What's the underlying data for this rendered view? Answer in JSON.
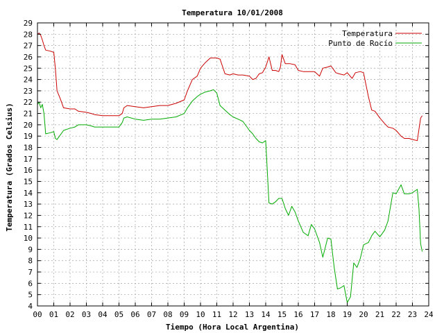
{
  "chart_data": {
    "type": "line",
    "title": "Temperatura 10/01/2008",
    "xlabel": "Tiempo (Hora Local Argentina)",
    "ylabel": "Temperatura (Grados Celsius)",
    "xlim": [
      0,
      24
    ],
    "ylim": [
      4,
      29
    ],
    "x_ticks": [
      "00",
      "01",
      "02",
      "03",
      "04",
      "05",
      "06",
      "07",
      "08",
      "09",
      "10",
      "11",
      "12",
      "13",
      "14",
      "15",
      "16",
      "17",
      "18",
      "19",
      "20",
      "21",
      "22",
      "23",
      "24"
    ],
    "y_ticks": [
      "4",
      "5",
      "6",
      "7",
      "8",
      "9",
      "10",
      "11",
      "12",
      "13",
      "14",
      "15",
      "16",
      "17",
      "18",
      "19",
      "20",
      "21",
      "22",
      "23",
      "24",
      "25",
      "26",
      "27",
      "28",
      "29"
    ],
    "grid": true,
    "legend_position": "top-right",
    "series": [
      {
        "name": "Temperatura",
        "color": "#cc0000",
        "x": [
          0.0,
          0.1,
          0.2,
          0.3,
          0.4,
          0.5,
          0.8,
          1.0,
          1.1,
          1.2,
          1.4,
          1.6,
          2.0,
          2.3,
          2.5,
          3.0,
          3.3,
          3.5,
          4.0,
          4.5,
          5.0,
          5.2,
          5.3,
          5.5,
          6.0,
          6.5,
          7.0,
          7.5,
          8.0,
          8.5,
          9.0,
          9.2,
          9.5,
          9.8,
          10.0,
          10.3,
          10.6,
          11.0,
          11.2,
          11.5,
          11.8,
          12.0,
          12.3,
          12.6,
          13.0,
          13.2,
          13.4,
          13.6,
          13.8,
          14.0,
          14.2,
          14.4,
          14.6,
          14.8,
          14.9,
          15.0,
          15.2,
          15.5,
          15.8,
          16.0,
          16.3,
          16.6,
          17.0,
          17.3,
          17.5,
          17.8,
          18.0,
          18.3,
          18.5,
          18.8,
          19.0,
          19.3,
          19.5,
          19.8,
          20.0,
          20.3,
          20.5,
          20.7,
          21.0,
          21.3,
          21.5,
          21.8,
          22.0,
          22.3,
          22.5,
          22.8,
          23.0,
          23.3,
          23.4,
          23.5,
          23.6
        ],
        "values": [
          28.0,
          28.1,
          27.9,
          27.5,
          27.0,
          26.6,
          26.5,
          26.4,
          25.0,
          23.0,
          22.3,
          21.5,
          21.4,
          21.4,
          21.2,
          21.1,
          21.0,
          20.9,
          20.8,
          20.8,
          20.8,
          21.0,
          21.5,
          21.7,
          21.6,
          21.5,
          21.6,
          21.7,
          21.7,
          21.9,
          22.2,
          23.0,
          24.0,
          24.3,
          25.0,
          25.5,
          25.9,
          25.9,
          25.8,
          24.5,
          24.4,
          24.5,
          24.4,
          24.4,
          24.3,
          24.0,
          24.1,
          24.5,
          24.6,
          25.1,
          26.0,
          24.8,
          24.8,
          24.7,
          25.1,
          26.2,
          25.4,
          25.4,
          25.3,
          24.8,
          24.7,
          24.7,
          24.7,
          24.3,
          25.0,
          25.1,
          25.2,
          24.6,
          24.5,
          24.4,
          24.6,
          24.1,
          24.6,
          24.7,
          24.6,
          22.5,
          21.3,
          21.2,
          20.6,
          20.1,
          19.8,
          19.7,
          19.5,
          19.0,
          18.8,
          18.8,
          18.7,
          18.6,
          19.6,
          20.6,
          20.8
        ]
      },
      {
        "name": "Punto de Rocío",
        "color": "#00aa00",
        "x": [
          0.0,
          0.1,
          0.2,
          0.3,
          0.4,
          0.5,
          0.8,
          1.0,
          1.1,
          1.2,
          1.4,
          1.6,
          2.0,
          2.3,
          2.5,
          3.0,
          3.3,
          3.5,
          4.0,
          4.5,
          5.0,
          5.2,
          5.3,
          5.5,
          6.0,
          6.5,
          7.0,
          7.5,
          8.0,
          8.5,
          9.0,
          9.2,
          9.5,
          9.8,
          10.0,
          10.3,
          10.6,
          10.8,
          11.0,
          11.2,
          11.5,
          11.8,
          12.0,
          12.3,
          12.6,
          13.0,
          13.2,
          13.4,
          13.6,
          13.8,
          14.0,
          14.2,
          14.4,
          14.6,
          14.8,
          15.0,
          15.2,
          15.4,
          15.6,
          15.8,
          16.0,
          16.3,
          16.6,
          16.8,
          17.0,
          17.3,
          17.5,
          17.8,
          18.0,
          18.2,
          18.4,
          18.6,
          18.8,
          19.0,
          19.2,
          19.4,
          19.6,
          19.8,
          20.0,
          20.3,
          20.5,
          20.7,
          21.0,
          21.3,
          21.5,
          21.8,
          22.0,
          22.3,
          22.5,
          22.8,
          23.0,
          23.3,
          23.4,
          23.5,
          23.6
        ],
        "values": [
          21.8,
          22.0,
          21.5,
          21.8,
          21.0,
          19.2,
          19.3,
          19.4,
          18.8,
          18.7,
          19.1,
          19.5,
          19.7,
          19.8,
          20.0,
          20.0,
          19.9,
          19.8,
          19.8,
          19.8,
          19.8,
          20.2,
          20.6,
          20.7,
          20.5,
          20.4,
          20.5,
          20.5,
          20.6,
          20.7,
          21.0,
          21.5,
          22.1,
          22.5,
          22.7,
          22.9,
          23.0,
          23.1,
          22.8,
          21.7,
          21.3,
          20.9,
          20.7,
          20.5,
          20.3,
          19.5,
          19.2,
          18.8,
          18.5,
          18.4,
          18.6,
          13.1,
          13.0,
          13.2,
          13.5,
          13.5,
          12.6,
          12.0,
          12.8,
          12.3,
          11.5,
          10.5,
          10.2,
          11.2,
          10.8,
          9.6,
          8.3,
          10.0,
          9.9,
          7.4,
          5.5,
          5.6,
          5.8,
          4.3,
          4.8,
          7.8,
          7.4,
          8.2,
          9.4,
          9.6,
          10.2,
          10.6,
          10.1,
          10.7,
          11.5,
          14.0,
          13.9,
          14.7,
          13.9,
          13.9,
          14.0,
          14.3,
          12.6,
          9.5,
          8.8
        ]
      }
    ]
  }
}
